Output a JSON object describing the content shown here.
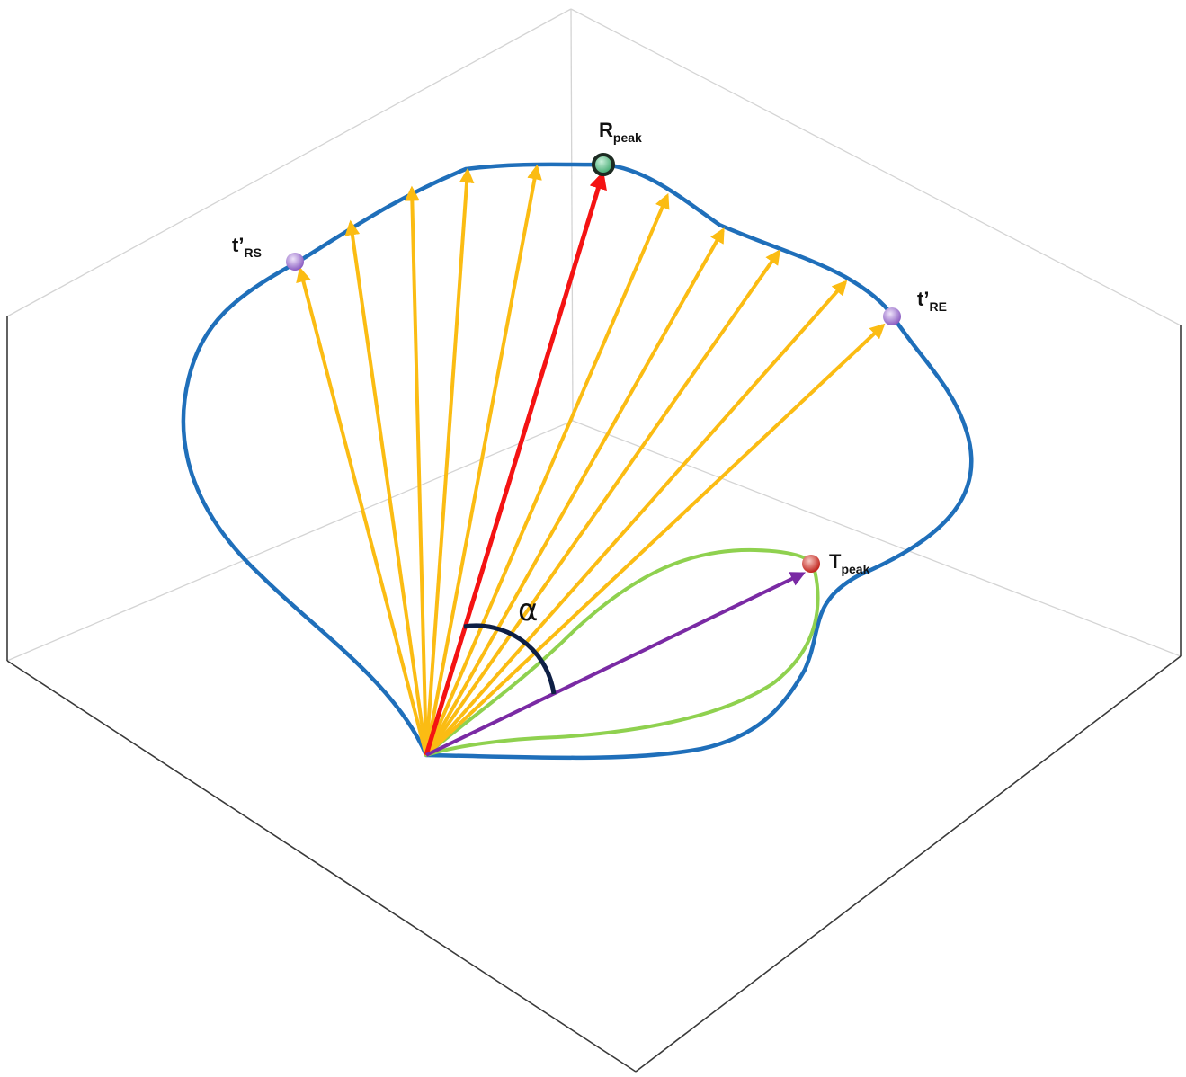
{
  "labels": {
    "r_peak": {
      "main": "R",
      "sub": "peak"
    },
    "t_peak": {
      "main": "T",
      "sub": "peak"
    },
    "t_rs": {
      "main": "t’",
      "sub": "RS"
    },
    "t_re": {
      "main": "t’",
      "sub": "RE"
    },
    "angle": "α"
  },
  "colors": {
    "axes_dark": "#3a3a3a",
    "axes_light": "#d4d4d4",
    "r_loop": "#1f6fba",
    "t_loop": "#8fd14f",
    "yellow_vectors": "#fbbc13",
    "r_peak_vector": "#f41313",
    "t_peak_vector": "#7a2aa4",
    "angle_arc": "#0e1f45",
    "r_peak_marker": "#5fc08a",
    "t_peak_marker": "#d9463f",
    "boundary_markers": "#a77fd0"
  }
}
